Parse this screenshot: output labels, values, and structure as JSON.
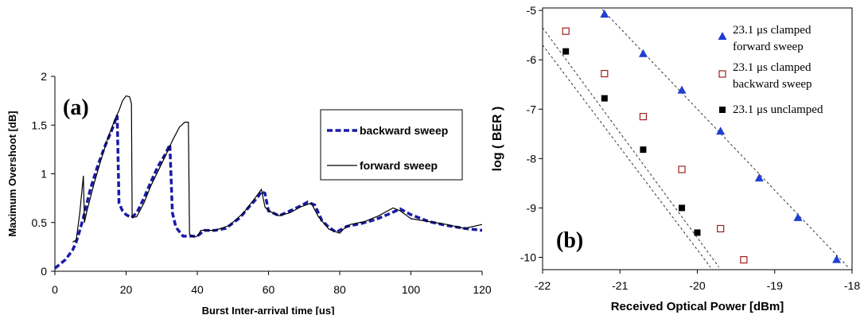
{
  "chart_data": [
    {
      "type": "line",
      "panel_label": "(a)",
      "xlabel": "Burst Inter-arrival time [us]",
      "ylabel": "Maximum Overshoot [dB]",
      "xlim": [
        0,
        120
      ],
      "ylim": [
        0,
        2
      ],
      "xticks": [
        "0",
        "20",
        "40",
        "60",
        "80",
        "100",
        "120"
      ],
      "yticks": [
        "0",
        "0.5",
        "1",
        "1.5",
        "2"
      ],
      "legend_position": "top-right",
      "series": [
        {
          "name": "backward sweep",
          "style": "dashed",
          "color": "#1a1aa8",
          "points": [
            [
              0,
              0.03
            ],
            [
              3,
              0.12
            ],
            [
              5,
              0.22
            ],
            [
              6,
              0.3
            ],
            [
              7,
              0.42
            ],
            [
              8,
              0.55
            ],
            [
              10,
              0.85
            ],
            [
              12,
              1.08
            ],
            [
              14,
              1.28
            ],
            [
              16,
              1.45
            ],
            [
              17.5,
              1.6
            ],
            [
              18,
              0.7
            ],
            [
              19,
              0.62
            ],
            [
              20,
              0.58
            ],
            [
              21.5,
              0.55
            ],
            [
              23,
              0.6
            ],
            [
              25,
              0.75
            ],
            [
              27,
              0.92
            ],
            [
              29,
              1.08
            ],
            [
              31,
              1.2
            ],
            [
              32.3,
              1.3
            ],
            [
              33,
              0.6
            ],
            [
              34,
              0.45
            ],
            [
              36,
              0.36
            ],
            [
              40,
              0.36
            ],
            [
              42,
              0.42
            ],
            [
              45,
              0.42
            ],
            [
              48,
              0.44
            ],
            [
              52,
              0.55
            ],
            [
              55,
              0.68
            ],
            [
              57,
              0.76
            ],
            [
              58,
              0.82
            ],
            [
              59,
              0.8
            ],
            [
              60,
              0.62
            ],
            [
              63,
              0.57
            ],
            [
              66,
              0.62
            ],
            [
              69,
              0.67
            ],
            [
              71,
              0.71
            ],
            [
              73,
              0.68
            ],
            [
              75,
              0.52
            ],
            [
              77,
              0.45
            ],
            [
              79,
              0.4
            ],
            [
              82,
              0.46
            ],
            [
              86,
              0.49
            ],
            [
              90,
              0.53
            ],
            [
              94,
              0.59
            ],
            [
              97,
              0.64
            ],
            [
              100,
              0.58
            ],
            [
              105,
              0.51
            ],
            [
              110,
              0.47
            ],
            [
              115,
              0.44
            ],
            [
              120,
              0.42
            ]
          ]
        },
        {
          "name": "forward sweep",
          "style": "solid",
          "color": "#000000",
          "points": [
            [
              5,
              0.3
            ],
            [
              6,
              0.32
            ],
            [
              7,
              0.6
            ],
            [
              8,
              0.98
            ],
            [
              8.3,
              0.5
            ],
            [
              9,
              0.62
            ],
            [
              11,
              0.9
            ],
            [
              13,
              1.15
            ],
            [
              15,
              1.38
            ],
            [
              17,
              1.57
            ],
            [
              18,
              1.65
            ],
            [
              19,
              1.75
            ],
            [
              20,
              1.8
            ],
            [
              21,
              1.79
            ],
            [
              21.5,
              1.72
            ],
            [
              21.7,
              0.55
            ],
            [
              23,
              0.56
            ],
            [
              25,
              0.7
            ],
            [
              27,
              0.88
            ],
            [
              29,
              1.03
            ],
            [
              31,
              1.18
            ],
            [
              33,
              1.34
            ],
            [
              35,
              1.48
            ],
            [
              36.5,
              1.53
            ],
            [
              37.5,
              1.53
            ],
            [
              37.8,
              0.38
            ],
            [
              39,
              0.35
            ],
            [
              40,
              0.36
            ],
            [
              41,
              0.42
            ],
            [
              45,
              0.42
            ],
            [
              49,
              0.47
            ],
            [
              53,
              0.6
            ],
            [
              56,
              0.74
            ],
            [
              58,
              0.84
            ],
            [
              59,
              0.66
            ],
            [
              60,
              0.62
            ],
            [
              63,
              0.57
            ],
            [
              66,
              0.6
            ],
            [
              69,
              0.66
            ],
            [
              72,
              0.7
            ],
            [
              74,
              0.56
            ],
            [
              77,
              0.43
            ],
            [
              80,
              0.39
            ],
            [
              81,
              0.43
            ],
            [
              83,
              0.48
            ],
            [
              87,
              0.51
            ],
            [
              91,
              0.57
            ],
            [
              95,
              0.65
            ],
            [
              97,
              0.62
            ],
            [
              100,
              0.54
            ],
            [
              105,
              0.51
            ],
            [
              110,
              0.48
            ],
            [
              115,
              0.44
            ],
            [
              120,
              0.48
            ]
          ]
        }
      ]
    },
    {
      "type": "scatter",
      "panel_label": "(b)",
      "xlabel": "Received Optical Power [dBm]",
      "ylabel": "log ( BER )",
      "xlim": [
        -22,
        -18
      ],
      "ylim": [
        -10.25,
        -4.95
      ],
      "xticks": [
        "-22",
        "-21",
        "-20",
        "-19",
        "-18"
      ],
      "yticks": [
        "-5",
        "-6",
        "-7",
        "-8",
        "-9",
        "-10"
      ],
      "legend_position": "top-right",
      "series": [
        {
          "name": "23.1 μs clamped forward sweep",
          "name_lines": [
            "23.1 μs clamped",
            "forward sweep"
          ],
          "marker": "filled-triangle",
          "color": "#1f3fd0",
          "points": [
            [
              -21.2,
              -5.08
            ],
            [
              -20.7,
              -5.88
            ],
            [
              -20.2,
              -6.62
            ],
            [
              -19.7,
              -7.45
            ],
            [
              -19.2,
              -8.4
            ],
            [
              -18.7,
              -9.2
            ],
            [
              -18.2,
              -10.05
            ]
          ],
          "fit": [
            [
              -21.4,
              -4.7
            ],
            [
              -18.05,
              -10.2
            ]
          ]
        },
        {
          "name": "23.1 μs clamped backward sweep",
          "name_lines": [
            "23.1 μs clamped",
            "backward sweep"
          ],
          "marker": "open-square",
          "color": "#a02020",
          "points": [
            [
              -21.7,
              -5.42
            ],
            [
              -21.2,
              -6.28
            ],
            [
              -20.7,
              -7.15
            ],
            [
              -20.2,
              -8.22
            ],
            [
              -19.7,
              -9.42
            ],
            [
              -19.4,
              -10.05
            ]
          ],
          "fit": [
            [
              -22,
              -5.35
            ],
            [
              -19.72,
              -10.2
            ]
          ]
        },
        {
          "name": "23.1 μs unclamped",
          "name_lines": [
            "23.1 μs unclamped"
          ],
          "marker": "filled-square",
          "color": "#000000",
          "points": [
            [
              -21.7,
              -5.83
            ],
            [
              -21.2,
              -6.78
            ],
            [
              -20.7,
              -7.82
            ],
            [
              -20.2,
              -9.0
            ],
            [
              -20.0,
              -9.5
            ]
          ],
          "fit": [
            [
              -22,
              -5.7
            ],
            [
              -19.83,
              -10.2
            ]
          ]
        }
      ]
    }
  ]
}
